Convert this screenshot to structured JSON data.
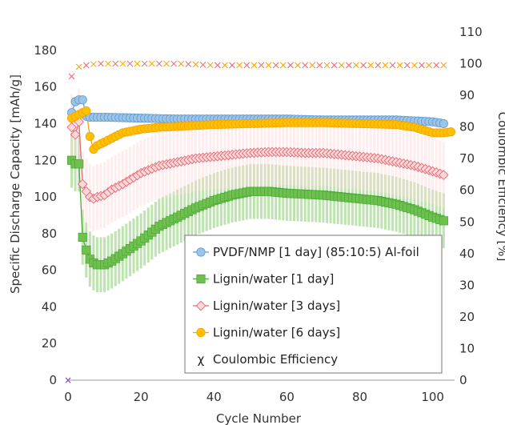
{
  "chart_data": {
    "type": "line",
    "xlabel": "Cycle Number",
    "ylabel": "Specific Discharge Capacity [mAh/g]",
    "y2label": "Coulombic Efficiency [%]",
    "xlim": [
      0,
      106
    ],
    "ylim": [
      0,
      190
    ],
    "y2lim": [
      0,
      110
    ],
    "xticks": [
      0,
      20,
      40,
      60,
      80,
      100
    ],
    "yticks": [
      0,
      20,
      40,
      60,
      80,
      100,
      120,
      140,
      160,
      180
    ],
    "y2ticks": [
      0,
      10,
      20,
      30,
      40,
      50,
      60,
      70,
      80,
      90,
      100,
      110
    ],
    "grid": false,
    "legend_position": "bottom-right",
    "series": [
      {
        "name": "PVDF/NMP [1 day] (85:10:5) Al-foil",
        "marker": "circle",
        "color": "#5b9bd5",
        "fill": "#9dc3e6",
        "x": [
          1,
          2,
          3,
          4,
          5,
          6,
          10,
          20,
          30,
          40,
          50,
          60,
          70,
          80,
          90,
          100,
          103
        ],
        "y": [
          146,
          152,
          153,
          153,
          144,
          143.5,
          143.5,
          143,
          142.5,
          142.5,
          142.5,
          142.5,
          142,
          142,
          142,
          141,
          140
        ],
        "band": 1.5
      },
      {
        "name": "Lignin/water [1 day]",
        "marker": "square",
        "color": "#4aab37",
        "fill": "#70c04f",
        "x": [
          1,
          2,
          3,
          4,
          5,
          6,
          7,
          8,
          10,
          12,
          15,
          20,
          25,
          30,
          35,
          40,
          45,
          50,
          55,
          60,
          65,
          70,
          75,
          80,
          85,
          90,
          95,
          100,
          103
        ],
        "y": [
          120,
          118,
          118,
          78,
          71,
          66,
          64,
          63,
          63,
          65,
          69,
          76,
          84,
          89,
          94,
          98,
          101,
          103,
          103,
          102,
          101.5,
          101,
          100,
          99,
          98,
          96,
          93,
          89,
          87
        ],
        "band": 15
      },
      {
        "name": "Lignin/water [3 days]",
        "marker": "diamond",
        "color": "#e06b72",
        "fill": "#ffd6d9",
        "x": [
          1,
          2,
          3,
          4,
          5,
          6,
          7,
          8,
          10,
          12,
          15,
          20,
          25,
          30,
          35,
          40,
          45,
          50,
          55,
          60,
          65,
          70,
          75,
          80,
          85,
          90,
          95,
          100,
          103
        ],
        "y": [
          138,
          134,
          141,
          107,
          103,
          100,
          99,
          100,
          101,
          104,
          107,
          113,
          117,
          119,
          121,
          122,
          123,
          124,
          124.5,
          124.5,
          124,
          124,
          123,
          122,
          121,
          119,
          117,
          114,
          112
        ],
        "band": 18
      },
      {
        "name": "Lignin/water [6 days]",
        "marker": "circle",
        "color": "#f0a30a",
        "fill": "#ffc000",
        "x": [
          1,
          2,
          3,
          4,
          5,
          6,
          7,
          8,
          10,
          12,
          15,
          20,
          25,
          30,
          40,
          50,
          60,
          70,
          80,
          90,
          95,
          100,
          103,
          105
        ],
        "y": [
          143,
          144,
          145,
          146,
          147,
          133,
          126,
          128,
          130,
          132,
          135,
          137,
          138,
          138.5,
          139.5,
          140,
          140.5,
          140.5,
          140,
          139.5,
          138,
          135,
          135,
          135.5
        ],
        "band": 1.5
      },
      {
        "name": "Coulombic Efficiency",
        "marker": "x",
        "axis": "right",
        "x": [
          1,
          2,
          3,
          5,
          8,
          10,
          15,
          20,
          30,
          40,
          50,
          60,
          70,
          80,
          90,
          100,
          103
        ],
        "y": [
          96,
          98,
          99,
          99.5,
          100,
          100,
          100,
          100,
          100,
          99.5,
          99.5,
          99.5,
          99.5,
          99.5,
          99.5,
          99.5,
          99.5
        ]
      }
    ]
  }
}
